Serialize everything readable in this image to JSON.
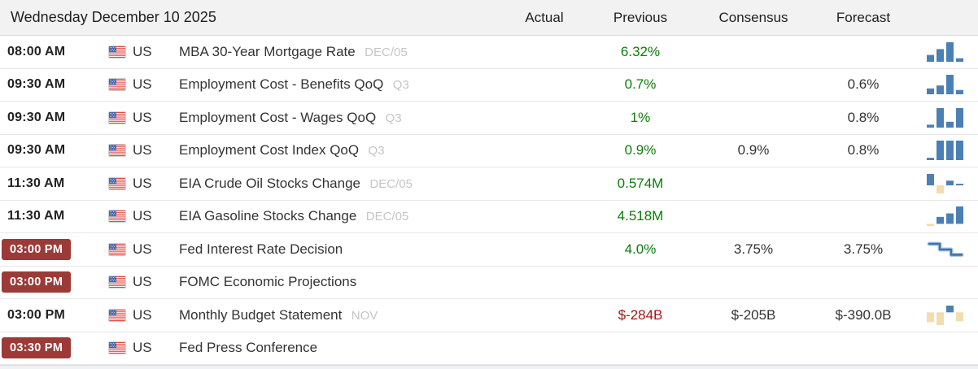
{
  "header": {
    "date_title": "Wednesday December 10 2025",
    "columns": [
      "Actual",
      "Previous",
      "Consensus",
      "Forecast"
    ]
  },
  "colors": {
    "positive_value": "#0b7d0b",
    "negative_value": "#a01616",
    "live_badge_bg": "#9c3a38",
    "spark_blue": "#4b80b4",
    "spark_tan": "#f3dcae",
    "spark_step_halo": "#aac8e6",
    "spark_step_core": "#3f72aa",
    "header_bg": "#f2f2f3"
  },
  "rows": [
    {
      "time": "08:00 AM",
      "live_badge": false,
      "country": "US",
      "event": "MBA 30-Year Mortgage Rate",
      "reference": "DEC/05",
      "actual": "",
      "previous": "6.32%",
      "previous_tone": "positive",
      "consensus": "",
      "forecast": "",
      "spark": {
        "type": "bars",
        "values": [
          0.35,
          0.65,
          1,
          0.18
        ],
        "colors": [
          "blue",
          "blue",
          "blue",
          "blue"
        ]
      }
    },
    {
      "time": "09:30 AM",
      "live_badge": false,
      "country": "US",
      "event": "Employment Cost - Benefits QoQ",
      "reference": "Q3",
      "actual": "",
      "previous": "0.7%",
      "previous_tone": "positive",
      "consensus": "",
      "forecast": "0.6%",
      "spark": {
        "type": "bars",
        "values": [
          0.3,
          0.45,
          1,
          0.22
        ],
        "colors": [
          "blue",
          "blue",
          "blue",
          "blue"
        ]
      }
    },
    {
      "time": "09:30 AM",
      "live_badge": false,
      "country": "US",
      "event": "Employment Cost - Wages QoQ",
      "reference": "Q3",
      "actual": "",
      "previous": "1%",
      "previous_tone": "positive",
      "consensus": "",
      "forecast": "0.8%",
      "spark": {
        "type": "bars",
        "values": [
          0.15,
          1,
          0.3,
          1
        ],
        "colors": [
          "blue",
          "blue",
          "blue",
          "blue"
        ]
      }
    },
    {
      "time": "09:30 AM",
      "live_badge": false,
      "country": "US",
      "event": "Employment Cost Index QoQ",
      "reference": "Q3",
      "actual": "",
      "previous": "0.9%",
      "previous_tone": "positive",
      "consensus": "0.9%",
      "forecast": "0.8%",
      "spark": {
        "type": "bars",
        "values": [
          0.12,
          1,
          1,
          1
        ],
        "colors": [
          "blue",
          "blue",
          "blue",
          "blue"
        ]
      }
    },
    {
      "time": "11:30 AM",
      "live_badge": false,
      "country": "US",
      "event": "EIA Crude Oil Stocks Change",
      "reference": "DEC/05",
      "actual": "",
      "previous": "0.574M",
      "previous_tone": "positive",
      "consensus": "",
      "forecast": "",
      "spark": {
        "type": "bars",
        "values": [
          0.85,
          -0.6,
          0.35,
          0.07
        ],
        "colors": [
          "blue",
          "tan",
          "blue",
          "blue"
        ]
      }
    },
    {
      "time": "11:30 AM",
      "live_badge": false,
      "country": "US",
      "event": "EIA Gasoline Stocks Change",
      "reference": "DEC/05",
      "actual": "",
      "previous": "4.518M",
      "previous_tone": "positive",
      "consensus": "",
      "forecast": "",
      "spark": {
        "type": "bars",
        "values": [
          -0.12,
          0.4,
          0.6,
          1
        ],
        "colors": [
          "tan",
          "blue",
          "blue",
          "blue"
        ]
      }
    },
    {
      "time": "03:00 PM",
      "live_badge": true,
      "country": "US",
      "event": "Fed Interest Rate Decision",
      "reference": "",
      "actual": "",
      "previous": "4.0%",
      "previous_tone": "positive",
      "consensus": "3.75%",
      "forecast": "3.75%",
      "spark": {
        "type": "steps",
        "levels": [
          1,
          0.55,
          0.12
        ]
      }
    },
    {
      "time": "03:00 PM",
      "live_badge": true,
      "country": "US",
      "event": "FOMC Economic Projections",
      "reference": "",
      "actual": "",
      "previous": "",
      "previous_tone": "",
      "consensus": "",
      "forecast": "",
      "spark": null
    },
    {
      "time": "03:00 PM",
      "live_badge": false,
      "country": "US",
      "event": "Monthly Budget Statement",
      "reference": "NOV",
      "actual": "",
      "previous": "$-284B",
      "previous_tone": "negative",
      "consensus": "$-205B",
      "forecast": "$-390.0B",
      "spark": {
        "type": "bars",
        "values": [
          -0.65,
          -0.85,
          0.45,
          -0.6
        ],
        "colors": [
          "tan",
          "tan",
          "blue",
          "tan"
        ]
      }
    },
    {
      "time": "03:30 PM",
      "live_badge": true,
      "country": "US",
      "event": "Fed Press Conference",
      "reference": "",
      "actual": "",
      "previous": "",
      "previous_tone": "",
      "consensus": "",
      "forecast": "",
      "spark": null
    }
  ]
}
